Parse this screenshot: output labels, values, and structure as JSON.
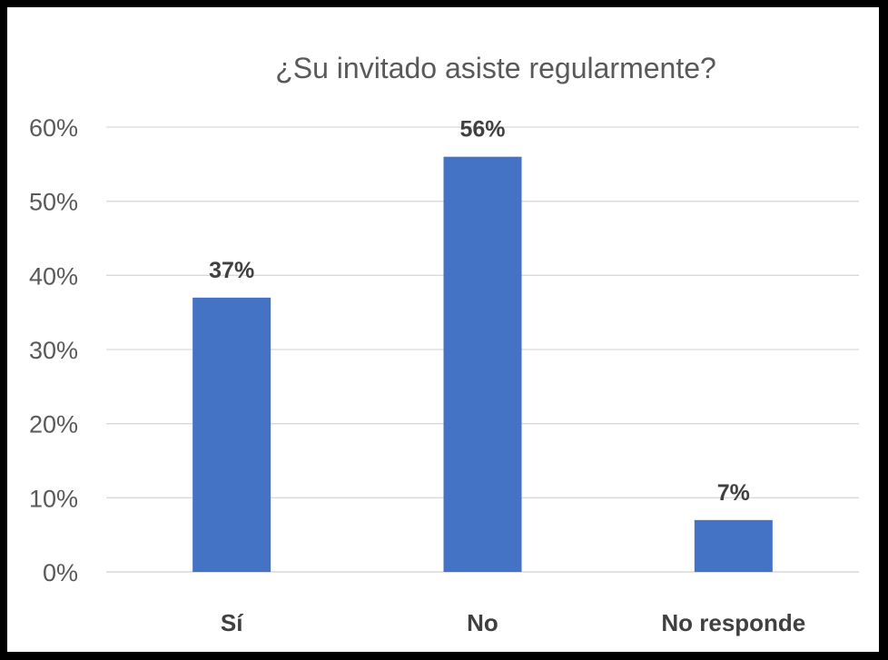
{
  "chart_data": {
    "type": "bar",
    "title": "¿Su invitado asiste regularmente?",
    "categories": [
      "Sí",
      "No",
      "No responde"
    ],
    "values": [
      37,
      56,
      7
    ],
    "data_labels": [
      "37%",
      "56%",
      "7%"
    ],
    "xlabel": "",
    "ylabel": "",
    "ylim": [
      0,
      60
    ],
    "y_ticks": [
      {
        "value": 0,
        "label": "0%"
      },
      {
        "value": 10,
        "label": "10%"
      },
      {
        "value": 20,
        "label": "20%"
      },
      {
        "value": 30,
        "label": "30%"
      },
      {
        "value": 40,
        "label": "40%"
      },
      {
        "value": 50,
        "label": "50%"
      },
      {
        "value": 60,
        "label": "60%"
      }
    ],
    "grid": true,
    "legend": "none",
    "bar_color": "#4472c4"
  }
}
